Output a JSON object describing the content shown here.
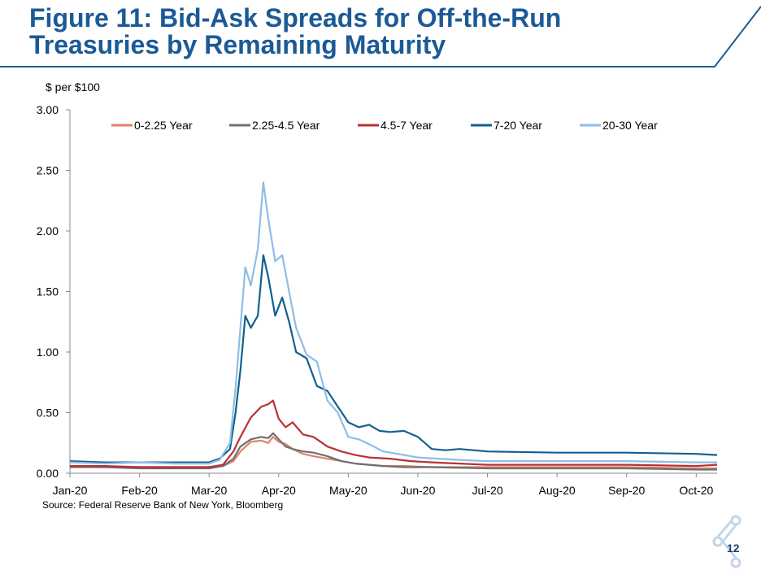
{
  "title_line1": "Figure 11: Bid-Ask Spreads for Off-the-Run",
  "title_line2": "Treasuries by Remaining Maturity",
  "unit_label": "$ per $100",
  "source": "Source: Federal Reserve Bank of New York, Bloomberg",
  "page_number": "12",
  "colors": {
    "title": "#1b5a96",
    "accent_line": "#1b5a96"
  },
  "chart_data": {
    "type": "line",
    "ylim": [
      0,
      3
    ],
    "y_ticks": [
      "0.00",
      "0.50",
      "1.00",
      "1.50",
      "2.00",
      "2.50",
      "3.00"
    ],
    "x_tick_labels": [
      "Jan-20",
      "Feb-20",
      "Mar-20",
      "Apr-20",
      "May-20",
      "Jun-20",
      "Jul-20",
      "Aug-20",
      "Sep-20",
      "Oct-20"
    ],
    "x_range_months": [
      0,
      9.3
    ],
    "legend_position": "top",
    "series": [
      {
        "name": "0-2.25 Year",
        "color": "#e0806a",
        "x": [
          0,
          0.5,
          1,
          1.5,
          2,
          2.2,
          2.35,
          2.45,
          2.6,
          2.75,
          2.85,
          2.92,
          3,
          3.1,
          3.2,
          3.35,
          3.5,
          3.7,
          3.9,
          4.1,
          4.3,
          4.5,
          4.8,
          5.2,
          6,
          7,
          8,
          9,
          9.3
        ],
        "values": [
          0.06,
          0.05,
          0.05,
          0.05,
          0.05,
          0.06,
          0.1,
          0.18,
          0.26,
          0.27,
          0.25,
          0.3,
          0.26,
          0.24,
          0.2,
          0.16,
          0.14,
          0.12,
          0.1,
          0.08,
          0.07,
          0.06,
          0.06,
          0.05,
          0.05,
          0.05,
          0.05,
          0.04,
          0.04
        ]
      },
      {
        "name": "2.25-4.5 Year",
        "color": "#707070",
        "x": [
          0,
          0.5,
          1,
          1.5,
          2,
          2.2,
          2.35,
          2.45,
          2.6,
          2.75,
          2.85,
          2.92,
          3,
          3.1,
          3.2,
          3.35,
          3.5,
          3.7,
          3.9,
          4.1,
          4.3,
          4.5,
          4.8,
          5.2,
          6,
          7,
          8,
          9,
          9.3
        ],
        "values": [
          0.05,
          0.05,
          0.04,
          0.04,
          0.04,
          0.06,
          0.12,
          0.22,
          0.28,
          0.3,
          0.29,
          0.33,
          0.28,
          0.22,
          0.2,
          0.18,
          0.17,
          0.14,
          0.1,
          0.08,
          0.07,
          0.06,
          0.05,
          0.05,
          0.04,
          0.04,
          0.04,
          0.03,
          0.03
        ]
      },
      {
        "name": "4.5-7 Year",
        "color": "#b83232",
        "x": [
          0,
          0.5,
          1,
          1.5,
          2,
          2.2,
          2.35,
          2.45,
          2.6,
          2.75,
          2.85,
          2.92,
          3,
          3.1,
          3.2,
          3.35,
          3.5,
          3.7,
          3.9,
          4.1,
          4.3,
          4.6,
          4.9,
          5.2,
          5.6,
          6,
          7,
          8,
          9,
          9.3
        ],
        "values": [
          0.06,
          0.06,
          0.05,
          0.05,
          0.05,
          0.07,
          0.18,
          0.3,
          0.46,
          0.55,
          0.57,
          0.6,
          0.45,
          0.38,
          0.42,
          0.32,
          0.3,
          0.22,
          0.18,
          0.15,
          0.13,
          0.12,
          0.1,
          0.09,
          0.08,
          0.07,
          0.07,
          0.07,
          0.06,
          0.07
        ]
      },
      {
        "name": "7-20 Year",
        "color": "#13608f",
        "x": [
          0,
          0.5,
          1,
          1.5,
          2,
          2.15,
          2.3,
          2.38,
          2.45,
          2.52,
          2.6,
          2.7,
          2.78,
          2.85,
          2.95,
          3.05,
          3.15,
          3.25,
          3.4,
          3.55,
          3.7,
          3.85,
          4.0,
          4.15,
          4.3,
          4.45,
          4.6,
          4.8,
          5.0,
          5.2,
          5.4,
          5.6,
          6,
          7,
          8,
          9,
          9.3
        ],
        "values": [
          0.1,
          0.09,
          0.09,
          0.09,
          0.09,
          0.12,
          0.2,
          0.5,
          0.85,
          1.3,
          1.2,
          1.3,
          1.8,
          1.62,
          1.3,
          1.45,
          1.25,
          1.0,
          0.95,
          0.72,
          0.68,
          0.55,
          0.42,
          0.38,
          0.4,
          0.35,
          0.34,
          0.35,
          0.3,
          0.2,
          0.19,
          0.2,
          0.18,
          0.17,
          0.17,
          0.16,
          0.15
        ]
      },
      {
        "name": "20-30 Year",
        "color": "#8fbde6",
        "x": [
          0,
          0.5,
          1,
          1.5,
          2,
          2.15,
          2.3,
          2.38,
          2.45,
          2.52,
          2.6,
          2.7,
          2.78,
          2.85,
          2.95,
          3.05,
          3.15,
          3.25,
          3.4,
          3.55,
          3.7,
          3.85,
          4.0,
          4.15,
          4.3,
          4.5,
          4.8,
          5.0,
          5.3,
          5.6,
          6,
          7,
          8,
          9,
          9.3
        ],
        "values": [
          0.09,
          0.08,
          0.09,
          0.08,
          0.08,
          0.11,
          0.25,
          0.7,
          1.2,
          1.7,
          1.55,
          1.85,
          2.4,
          2.1,
          1.75,
          1.8,
          1.5,
          1.2,
          0.98,
          0.92,
          0.6,
          0.5,
          0.3,
          0.28,
          0.24,
          0.18,
          0.15,
          0.13,
          0.12,
          0.11,
          0.1,
          0.1,
          0.1,
          0.09,
          0.09
        ]
      }
    ]
  }
}
